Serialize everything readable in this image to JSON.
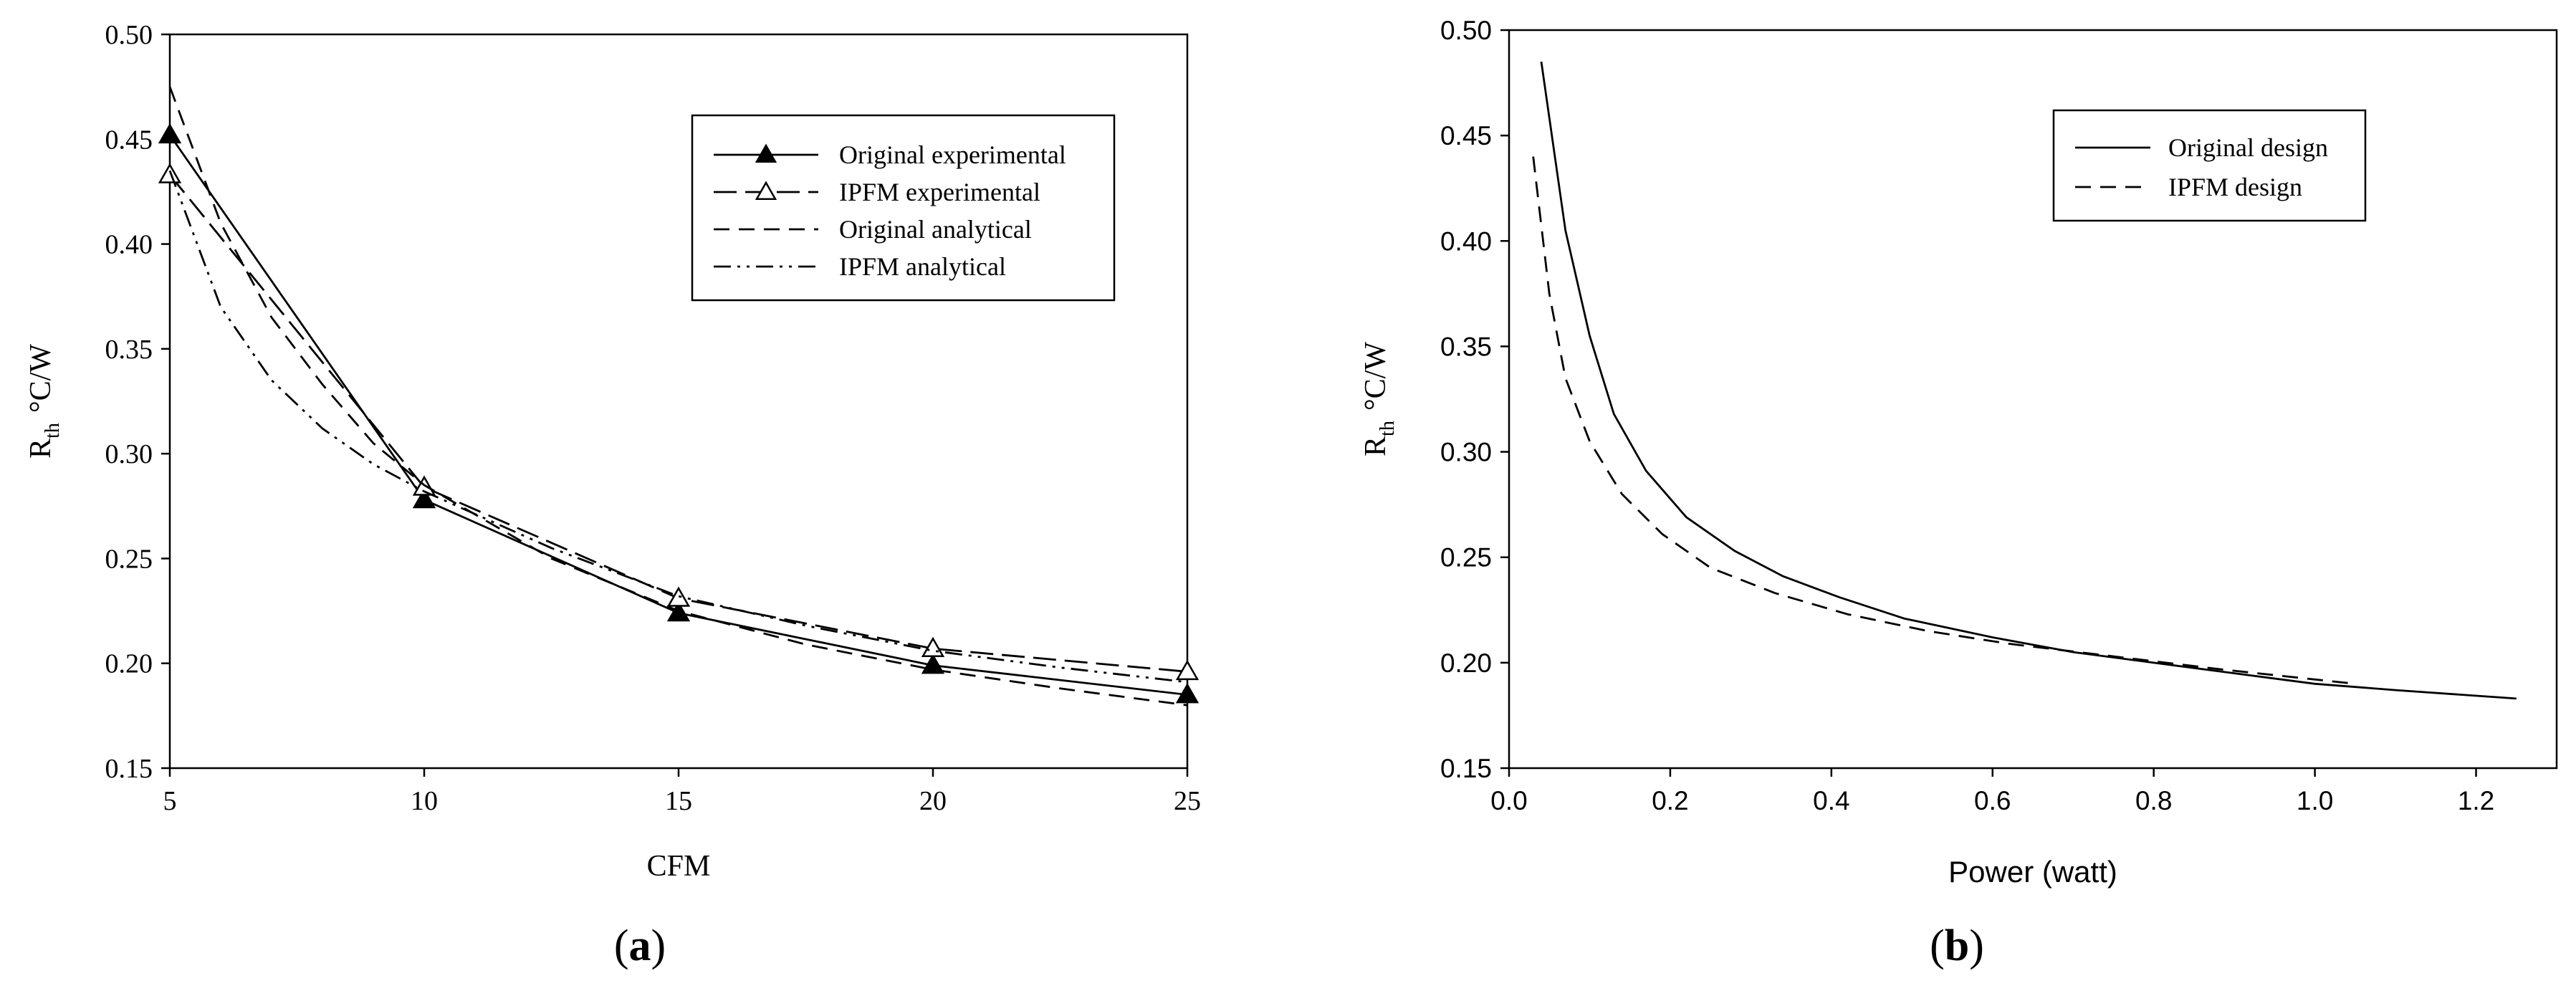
{
  "chart_data": [
    {
      "id": "a",
      "type": "line",
      "panel_label": "(a)",
      "title": "",
      "xlabel": "CFM",
      "ylabel_main": "R",
      "ylabel_sub": "th",
      "ylabel_unit": "°C/W",
      "xlim": [
        5,
        25
      ],
      "ylim": [
        0.15,
        0.5
      ],
      "xticks": [
        "5",
        "10",
        "15",
        "20",
        "25"
      ],
      "yticks": [
        "0.15",
        "0.20",
        "0.25",
        "0.30",
        "0.35",
        "0.40",
        "0.45",
        "0.50"
      ],
      "legend_position": "top-right",
      "series": [
        {
          "name": "Original experimental",
          "style": "solid",
          "marker": "filled-triangle",
          "x": [
            5,
            10,
            15,
            20,
            25
          ],
          "y": [
            0.452,
            0.278,
            0.224,
            0.199,
            0.185
          ]
        },
        {
          "name": "IPFM experimental",
          "style": "long-dash",
          "marker": "open-triangle",
          "x": [
            5,
            10,
            15,
            20,
            25
          ],
          "y": [
            0.433,
            0.284,
            0.231,
            0.207,
            0.196
          ]
        },
        {
          "name": "Original analytical",
          "style": "dash",
          "marker": "none",
          "x": [
            5,
            6,
            7,
            8,
            9,
            10,
            12.5,
            15,
            17.5,
            20,
            22.5,
            25
          ],
          "y": [
            0.475,
            0.41,
            0.365,
            0.333,
            0.305,
            0.285,
            0.25,
            0.225,
            0.209,
            0.197,
            0.188,
            0.18
          ]
        },
        {
          "name": "IPFM analytical",
          "style": "dash-dot-dot",
          "marker": "none",
          "x": [
            5,
            6,
            7,
            8,
            9,
            10,
            12.5,
            15,
            17.5,
            20,
            22.5,
            25
          ],
          "y": [
            0.435,
            0.37,
            0.335,
            0.312,
            0.295,
            0.282,
            0.255,
            0.232,
            0.218,
            0.206,
            0.198,
            0.191
          ]
        }
      ]
    },
    {
      "id": "b",
      "type": "line",
      "panel_label": "(b)",
      "title": "",
      "xlabel": "Power (watt)",
      "ylabel_main": "R",
      "ylabel_sub": "th",
      "ylabel_unit": "°C/W",
      "xlim": [
        0.0,
        1.3
      ],
      "ylim": [
        0.15,
        0.5
      ],
      "xticks": [
        "0.0",
        "0.2",
        "0.4",
        "0.6",
        "0.8",
        "1.0",
        "1.2"
      ],
      "yticks": [
        "0.15",
        "0.20",
        "0.25",
        "0.30",
        "0.35",
        "0.40",
        "0.45",
        "0.50"
      ],
      "legend_position": "top-right",
      "series": [
        {
          "name": "Original design",
          "style": "solid",
          "marker": "none",
          "x": [
            0.04,
            0.07,
            0.1,
            0.13,
            0.17,
            0.22,
            0.28,
            0.34,
            0.41,
            0.49,
            0.6,
            0.7,
            0.8,
            0.9,
            1.0,
            1.1,
            1.25
          ],
          "y": [
            0.485,
            0.405,
            0.355,
            0.318,
            0.291,
            0.269,
            0.253,
            0.241,
            0.231,
            0.221,
            0.212,
            0.205,
            0.2,
            0.195,
            0.19,
            0.187,
            0.183
          ]
        },
        {
          "name": "IPFM design",
          "style": "dash",
          "marker": "none",
          "x": [
            0.03,
            0.05,
            0.07,
            0.1,
            0.14,
            0.19,
            0.25,
            0.33,
            0.42,
            0.52,
            0.62,
            0.75,
            0.88,
            1.05
          ],
          "y": [
            0.44,
            0.375,
            0.335,
            0.305,
            0.28,
            0.261,
            0.245,
            0.233,
            0.223,
            0.215,
            0.209,
            0.203,
            0.197,
            0.19
          ]
        }
      ]
    }
  ]
}
